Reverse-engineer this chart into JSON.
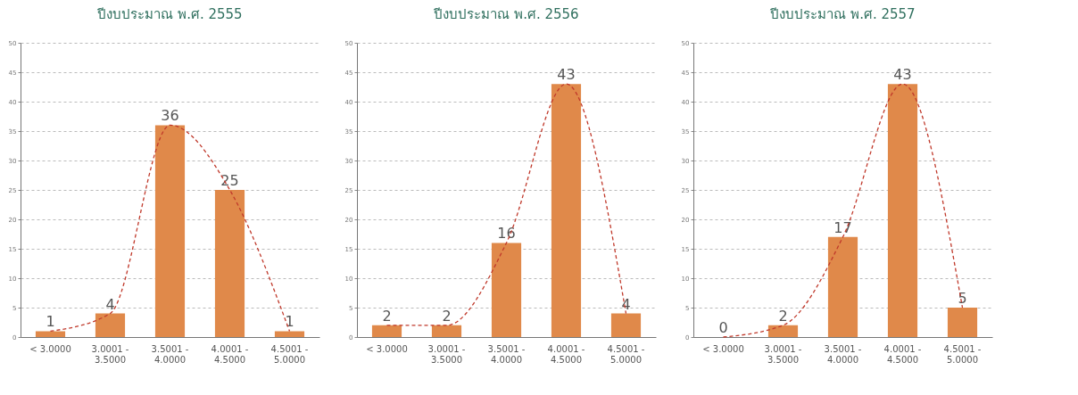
{
  "chart_data": [
    {
      "type": "bar",
      "title": "ปีงบประมาณ พ.ศ. 2555",
      "categories": [
        "< 3.0000",
        "3.0001 - 3.5000",
        "3.5001 - 4.0000",
        "4.0001 - 4.5000",
        "4.5001 - 5.0000"
      ],
      "series": [
        {
          "color": "#e0894a",
          "values": [
            1,
            4,
            36,
            25,
            1
          ],
          "value_labels": [
            "1",
            "4",
            "36",
            "25",
            "1"
          ]
        },
        {
          "type": "line",
          "color": "#c0392b",
          "line_style": "dashed",
          "values": [
            1,
            4,
            36,
            25,
            1
          ]
        }
      ],
      "ylim": [
        0,
        50
      ],
      "yticks": [
        0,
        5,
        10,
        15,
        20,
        25,
        30,
        35,
        40,
        45,
        50
      ],
      "grid": "y"
    },
    {
      "type": "bar",
      "title": "ปีงบประมาณ พ.ศ. 2556",
      "categories": [
        "< 3.0000",
        "3.0001 - 3.5000",
        "3.5001 - 4.0000",
        "4.0001 - 4.5000",
        "4.5001 - 5.0000"
      ],
      "series": [
        {
          "color": "#e0894a",
          "values": [
            2,
            2,
            16,
            43,
            4
          ],
          "value_labels": [
            "2",
            "2",
            "16",
            "43",
            "4"
          ]
        },
        {
          "type": "line",
          "color": "#c0392b",
          "line_style": "dashed",
          "values": [
            2,
            2,
            16,
            43,
            4
          ]
        }
      ],
      "ylim": [
        0,
        50
      ],
      "yticks": [
        0,
        5,
        10,
        15,
        20,
        25,
        30,
        35,
        40,
        45,
        50
      ],
      "grid": "y"
    },
    {
      "type": "bar",
      "title": "ปีงบประมาณ พ.ศ. 2557",
      "categories": [
        "< 3.0000",
        "3.0001 - 3.5000",
        "3.5001 - 4.0000",
        "4.0001 - 4.5000",
        "4.5001 - 5.0000"
      ],
      "series": [
        {
          "color": "#e0894a",
          "values": [
            0,
            2,
            17,
            43,
            5
          ],
          "value_labels": [
            "0",
            "2",
            "17",
            "43",
            "5"
          ]
        },
        {
          "type": "line",
          "color": "#c0392b",
          "line_style": "dashed",
          "values": [
            0,
            2,
            17,
            43,
            5
          ]
        }
      ],
      "ylim": [
        0,
        50
      ],
      "yticks": [
        0,
        5,
        10,
        15,
        20,
        25,
        30,
        35,
        40,
        45,
        50
      ],
      "grid": "y"
    }
  ]
}
